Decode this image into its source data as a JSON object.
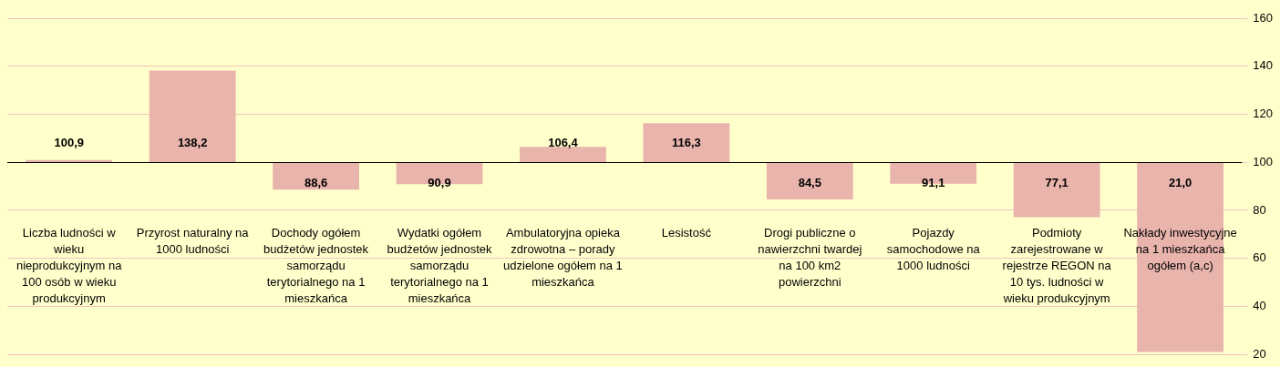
{
  "chart_data": {
    "type": "bar",
    "categories": [
      "Liczba ludności w wieku nieprodukcyjnym na 100 osób w wieku produkcyjnym",
      "Przyrost naturalny na 1000 ludności",
      "Dochody ogółem budżetów jednostek samorządu terytorialnego na 1 mieszkańca",
      "Wydatki ogółem budżetów jednostek samorządu terytorialnego na 1 mieszkańca",
      "Ambulatoryjna opieka zdrowotna – porady udzielone ogółem na 1 mieszkańca",
      "Lesistość",
      "Drogi publiczne o nawierzchni twardej na 100 km2 powierzchni",
      "Pojazdy samochodowe na 1000 ludności",
      "Podmioty zarejestrowane w rejestrze REGON na 10 tys. ludności w wieku produkcyjnym",
      "Nakłady inwestycyjne na 1 mieszkańca ogółem (a,c)"
    ],
    "base": [
      100,
      100,
      100,
      100,
      100,
      100,
      100,
      100,
      100,
      100
    ],
    "values": [
      0.9,
      38.2,
      -11.4,
      -9.1,
      6.4,
      16.3,
      -15.5,
      -8.9,
      -22.9,
      -79.0
    ],
    "value_labels": [
      "100,9",
      "138,2",
      "88,6",
      "90,9",
      "106,4",
      "116,3",
      "84,5",
      "91,1",
      "77,1",
      "21,0"
    ],
    "color": "#e8b4ac",
    "ylim": [
      20,
      160
    ],
    "yticks": [
      20,
      40,
      60,
      80,
      100,
      120,
      140,
      160
    ],
    "ref_lines": [
      {
        "axis": "y",
        "value": 100,
        "color": "#000000"
      }
    ],
    "grid": "y"
  }
}
